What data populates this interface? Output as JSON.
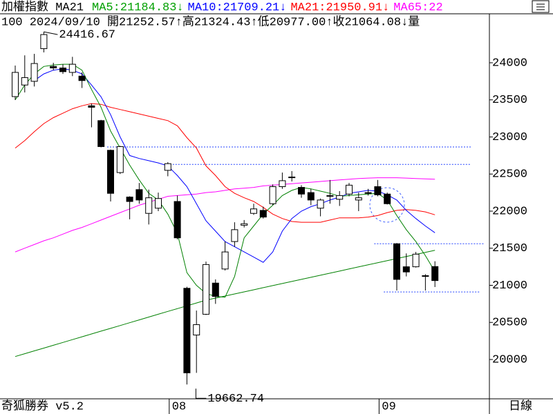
{
  "chart_data": {
    "type": "candlestick",
    "title": "加權指數 MA21",
    "header_items": [
      {
        "text": "MA5:21184.83",
        "arrow": "↓",
        "color": "#00a000"
      },
      {
        "text": "MA10:21709.21",
        "arrow": "↓",
        "color": "#0000ff"
      },
      {
        "text": "MA21:21950.91",
        "arrow": "↓",
        "color": "#ff0000"
      },
      {
        "text": "MA65:22",
        "color": "#ff00ff"
      }
    ],
    "status": "100 2024/09/10 開21252.57↑高21324.43↑低20977.00↑收21064.08↓量",
    "footer": "奇狐勝券 v5.2",
    "period": "日線",
    "categories": [
      null,
      null,
      null,
      null,
      null,
      null,
      null,
      null,
      null,
      null,
      null,
      null,
      null,
      null,
      null,
      null,
      "08",
      null,
      null,
      null,
      null,
      null,
      null,
      null,
      null,
      null,
      null,
      null,
      null,
      null,
      null,
      null,
      null,
      null,
      null,
      null,
      null,
      null,
      "09",
      null,
      null,
      null,
      null,
      null,
      null
    ],
    "open": [
      23544,
      23700,
      23750,
      24190,
      23950,
      23930,
      23870,
      23820,
      23420,
      23220,
      22820,
      22520,
      22190,
      22290,
      21970,
      22040,
      22550,
      22130,
      20960,
      20330,
      20610,
      21030,
      21220,
      21590,
      21810,
      21970,
      22010,
      22100,
      22330,
      22450,
      22320,
      22250,
      22040,
      22200,
      22160,
      22230,
      22150,
      22250,
      22330,
      22230,
      21560,
      21250,
      21250,
      21130,
      21252.57
    ],
    "high": [
      23963,
      24100,
      24120,
      24416.67,
      24000,
      23980,
      24080,
      23870,
      23450,
      23230,
      22830,
      22880,
      22200,
      22380,
      22290,
      22250,
      22660,
      22210,
      20980,
      20660,
      21320,
      21080,
      21590,
      21850,
      21880,
      22100,
      22060,
      22360,
      22520,
      22540,
      22350,
      22300,
      22170,
      22420,
      22270,
      22380,
      22250,
      22300,
      22420,
      22250,
      21570,
      21430,
      21450,
      21150,
      21324.43
    ],
    "low": [
      23498,
      23600,
      23680,
      24140,
      23900,
      23850,
      23820,
      23660,
      23130,
      22860,
      22130,
      22500,
      21890,
      22100,
      21820,
      22000,
      22470,
      21620,
      19662.74,
      19820,
      20600,
      20750,
      21200,
      21520,
      21780,
      21950,
      21900,
      22080,
      22300,
      22400,
      22180,
      22080,
      21930,
      22100,
      22070,
      22200,
      22000,
      22210,
      22200,
      22090,
      20930,
      21120,
      21240,
      20930,
      20977.0
    ],
    "close": [
      23870,
      23800,
      23990,
      24380,
      23930,
      23880,
      23980,
      23760,
      23400,
      22870,
      22240,
      22870,
      22130,
      22150,
      22180,
      22170,
      22640,
      21640,
      19820,
      20470,
      21280,
      20850,
      21450,
      21750,
      21830,
      22030,
      21920,
      22330,
      22410,
      22460,
      22230,
      22150,
      22150,
      22210,
      22210,
      22350,
      22180,
      22240,
      22220,
      22100,
      21080,
      21180,
      21420,
      21120,
      21064.08
    ],
    "series": [
      {
        "color": "#008000",
        "values": [
          20040,
          20078,
          20116,
          20154,
          20192,
          20230,
          20268,
          20306,
          20344,
          20382,
          20420,
          20458,
          20496,
          20534,
          20572,
          20610,
          20648,
          20686,
          20724,
          20762,
          20800,
          20828,
          20856,
          20884,
          20912,
          20940,
          20968,
          20996,
          21024,
          21052,
          21080,
          21108,
          21136,
          21164,
          21192,
          21220,
          21248,
          21276,
          21304,
          21332,
          21360,
          21388,
          21416,
          21444,
          21472
        ]
      },
      {
        "color": "#ff00ff",
        "values": [
          21450,
          21500,
          21550,
          21600,
          21640,
          21690,
          21740,
          21780,
          21830,
          21880,
          21930,
          21980,
          22030,
          22080,
          22120,
          22160,
          22200,
          22210,
          22220,
          22230,
          22250,
          22260,
          22280,
          22300,
          22310,
          22320,
          22340,
          22350,
          22360,
          22370,
          22380,
          22390,
          22400,
          22410,
          22420,
          22430,
          22440,
          22445,
          22450,
          22450,
          22450,
          22445,
          22440,
          22435,
          22430
        ]
      },
      {
        "color": "#ff0000",
        "values": [
          22850,
          22950,
          23070,
          23180,
          23260,
          23320,
          23380,
          23420,
          23450,
          23440,
          23400,
          23370,
          23340,
          23310,
          23280,
          23250,
          23220,
          23150,
          22990,
          22850,
          22610,
          22480,
          22330,
          22240,
          22180,
          22130,
          22050,
          21960,
          21900,
          21860,
          21850,
          21850,
          21850,
          21880,
          21910,
          21910,
          21910,
          21920,
          21940,
          21980,
          22010,
          22020,
          22010,
          21990,
          21950.91
        ]
      },
      {
        "color": "#0000ff",
        "values": [
          null,
          null,
          23760,
          23850,
          23900,
          23920,
          23900,
          23850,
          23700,
          23540,
          23300,
          23000,
          22750,
          22710,
          22680,
          22650,
          22610,
          22480,
          22330,
          22100,
          21870,
          21730,
          21590,
          21520,
          21450,
          21380,
          21310,
          21450,
          21730,
          21900,
          22000,
          22060,
          22100,
          22150,
          22190,
          22240,
          22260,
          22280,
          22270,
          22220,
          22150,
          22010,
          21900,
          21800,
          21709.21
        ]
      },
      {
        "color": "#008000",
        "values": [
          23500,
          23700,
          23850,
          23950,
          23970,
          23980,
          23980,
          23900,
          23640,
          23400,
          23080,
          22850,
          22620,
          22420,
          22240,
          22150,
          21960,
          21700,
          21170,
          21000,
          20890,
          20850,
          20840,
          21120,
          21640,
          21800,
          21960,
          22080,
          22210,
          22280,
          22320,
          22300,
          22270,
          22240,
          22200,
          22210,
          22220,
          22230,
          22240,
          22150,
          21940,
          21750,
          21590,
          21400,
          21184.83
        ]
      }
    ],
    "hlines": [
      {
        "value": 22865,
        "from": 10
      },
      {
        "value": 22630,
        "from": 16
      },
      {
        "value": 21560,
        "from": 38
      },
      {
        "value": 20910,
        "from": 39
      }
    ],
    "ylim": [
      19470,
      24660
    ],
    "yticks": [
      20000,
      20500,
      21000,
      21500,
      22000,
      22500,
      23000,
      23500,
      24000
    ]
  }
}
